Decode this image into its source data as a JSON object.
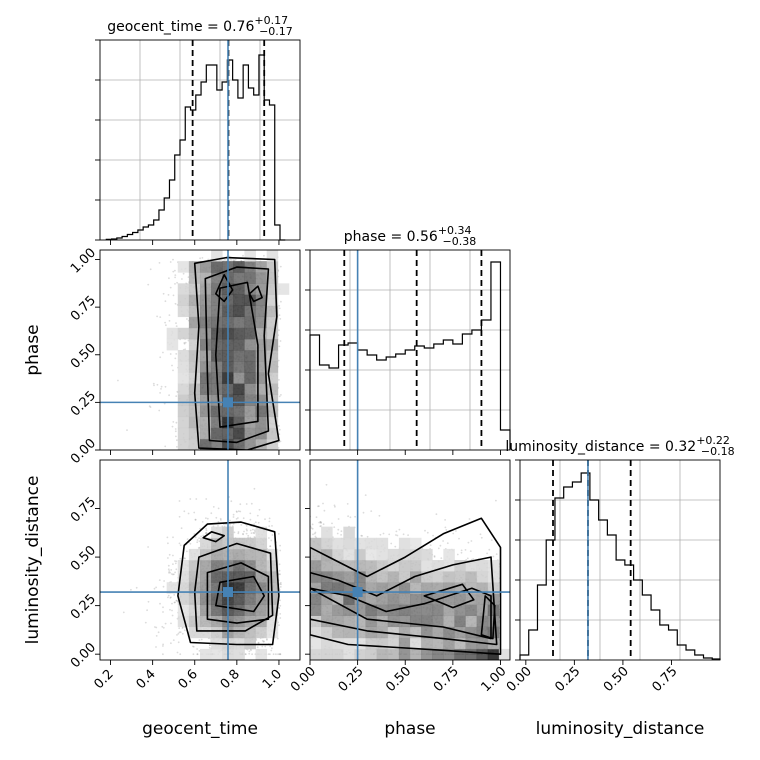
{
  "chart_data": [
    {
      "type": "histogram",
      "panel": "geocent_time",
      "title": {
        "main": "geocent_time = 0.76",
        "sup": "+0.17",
        "sub": "−0.17"
      },
      "xlim": [
        0.15,
        1.1
      ],
      "x_ticks": [
        0.2,
        0.4,
        0.6,
        0.8,
        1.0
      ],
      "x_tick_labels": [
        "0.2",
        "0.4",
        "0.6",
        "0.8",
        "1.0"
      ],
      "xlabel": "geocent_time",
      "bin_edges": [
        0.18,
        0.205,
        0.23,
        0.255,
        0.28,
        0.305,
        0.33,
        0.355,
        0.38,
        0.405,
        0.43,
        0.455,
        0.48,
        0.505,
        0.53,
        0.555,
        0.58,
        0.605,
        0.63,
        0.655,
        0.68,
        0.705,
        0.73,
        0.755,
        0.78,
        0.805,
        0.83,
        0.855,
        0.88,
        0.905,
        0.93,
        0.955,
        0.98,
        1.005,
        1.03
      ],
      "counts": [
        0.7,
        1.0,
        2.0,
        3.5,
        5.5,
        7.5,
        10,
        13,
        15,
        20,
        30,
        42,
        60,
        85,
        100,
        133,
        130,
        145,
        158,
        175,
        175,
        150,
        158,
        180,
        160,
        142,
        175,
        152,
        145,
        185,
        140,
        135,
        15,
        0
      ],
      "ylim": [
        0,
        200
      ],
      "quantiles": [
        0.59,
        0.76,
        0.93
      ],
      "truth": 0.758
    },
    {
      "type": "scatter-contour",
      "panel": "phase vs geocent_time",
      "xlim": [
        0.15,
        1.1
      ],
      "ylim": [
        0.0,
        1.05
      ],
      "x_ticks": [
        0.2,
        0.4,
        0.6,
        0.8,
        1.0
      ],
      "y_ticks": [
        0.0,
        0.25,
        0.5,
        0.75,
        1.0
      ],
      "y_tick_labels": [
        "0.00",
        "0.25",
        "0.50",
        "0.75",
        "1.00"
      ],
      "ylabel": "phase",
      "truth": [
        0.758,
        0.25
      ]
    },
    {
      "type": "histogram",
      "panel": "phase",
      "title": {
        "main": "phase = 0.56",
        "sup": "+0.34",
        "sub": "−0.38"
      },
      "xlim": [
        0.0,
        1.05
      ],
      "bin_edges": [
        0.0,
        0.05,
        0.1,
        0.15,
        0.2,
        0.25,
        0.3,
        0.35,
        0.4,
        0.45,
        0.5,
        0.55,
        0.6,
        0.65,
        0.7,
        0.75,
        0.8,
        0.85,
        0.9,
        0.95,
        1.0,
        1.05
      ],
      "counts": [
        115,
        85,
        82,
        105,
        107,
        100,
        95,
        90,
        93,
        96,
        100,
        104,
        102,
        106,
        110,
        106,
        116,
        120,
        130,
        188,
        20
      ],
      "ylim": [
        0,
        200
      ],
      "quantiles": [
        0.18,
        0.56,
        0.9
      ],
      "truth": 0.25
    },
    {
      "type": "scatter-contour",
      "panel": "luminosity_distance vs geocent_time",
      "xlim": [
        0.15,
        1.1
      ],
      "ylim": [
        -0.03,
        1.0
      ],
      "x_ticks": [
        0.2,
        0.4,
        0.6,
        0.8,
        1.0
      ],
      "x_tick_labels": [
        "0.2",
        "0.4",
        "0.6",
        "0.8",
        "1.0"
      ],
      "y_ticks": [
        0.0,
        0.25,
        0.5,
        0.75
      ],
      "y_tick_labels": [
        "0.00",
        "0.25",
        "0.50",
        "0.75"
      ],
      "xlabel": "geocent_time",
      "ylabel": "luminosity_distance",
      "truth": [
        0.758,
        0.32
      ]
    },
    {
      "type": "scatter-contour",
      "panel": "luminosity_distance vs phase",
      "xlim": [
        0.0,
        1.05
      ],
      "ylim": [
        -0.03,
        1.0
      ],
      "x_ticks": [
        0.0,
        0.25,
        0.5,
        0.75,
        1.0
      ],
      "x_tick_labels": [
        "0.00",
        "0.25",
        "0.50",
        "0.75",
        "1.00"
      ],
      "xlabel": "phase",
      "truth": [
        0.25,
        0.32
      ]
    },
    {
      "type": "histogram",
      "panel": "luminosity_distance",
      "title": {
        "main": "luminosity_distance = 0.32",
        "sup": "+0.22",
        "sub": "−0.18"
      },
      "xlim": [
        -0.03,
        1.0
      ],
      "x_ticks": [
        0.0,
        0.25,
        0.5,
        0.75
      ],
      "x_tick_labels": [
        "0.00",
        "0.25",
        "0.50",
        "0.75"
      ],
      "xlabel": "luminosity_distance",
      "bin_edges": [
        -0.03,
        0.015,
        0.06,
        0.105,
        0.15,
        0.195,
        0.24,
        0.285,
        0.33,
        0.375,
        0.42,
        0.465,
        0.51,
        0.555,
        0.6,
        0.645,
        0.69,
        0.735,
        0.78,
        0.825,
        0.87,
        0.915,
        0.96,
        1.0
      ],
      "counts": [
        5,
        30,
        75,
        120,
        162,
        173,
        178,
        187,
        160,
        140,
        125,
        100,
        95,
        80,
        65,
        50,
        35,
        30,
        15,
        10,
        5,
        2,
        1
      ],
      "ylim": [
        0,
        200
      ],
      "quantiles": [
        0.14,
        0.32,
        0.54
      ],
      "truth": 0.32
    }
  ],
  "colors": {
    "truth": "#4682b4",
    "hist": "#000000",
    "grid": "#b0b0b0",
    "scatter": "#9a9a9a"
  }
}
